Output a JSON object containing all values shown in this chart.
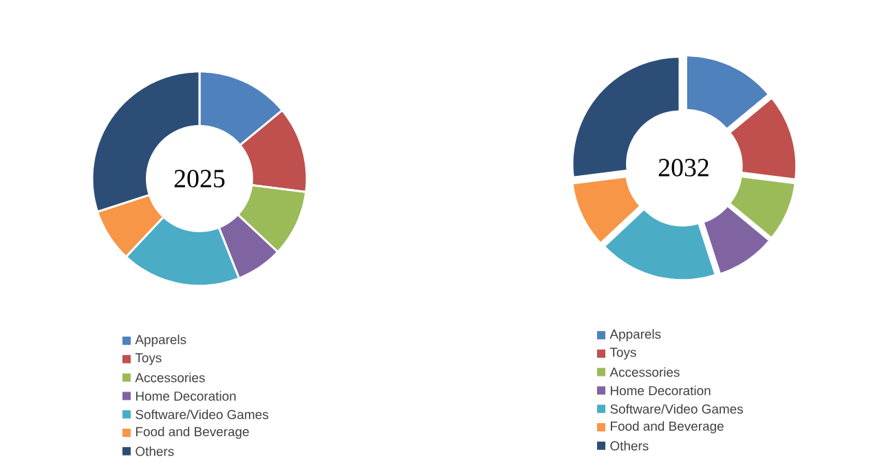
{
  "chart_data": [
    {
      "type": "donut",
      "title": "2025",
      "categories": [
        "Apparels",
        "Toys",
        "Accessories",
        "Home Decoration",
        "Software/Video Games",
        "Food and Beverage",
        "Others"
      ],
      "values": [
        14,
        13,
        10,
        7,
        18,
        8,
        30
      ],
      "colors": [
        "#4f81bd",
        "#c0504d",
        "#9bbb59",
        "#8064a2",
        "#4bacc6",
        "#f79646",
        "#2c4d75"
      ],
      "legend": "bottom"
    },
    {
      "type": "donut",
      "title": "2032",
      "categories": [
        "Apparels",
        "Toys",
        "Accessories",
        "Home Decoration",
        "Software/Video Games",
        "Food and Beverage",
        "Others"
      ],
      "values": [
        14,
        13,
        9,
        9,
        18,
        10,
        27
      ],
      "colors": [
        "#4f81bd",
        "#c0504d",
        "#9bbb59",
        "#8064a2",
        "#4bacc6",
        "#f79646",
        "#2c4d75"
      ],
      "legend": "bottom"
    }
  ]
}
